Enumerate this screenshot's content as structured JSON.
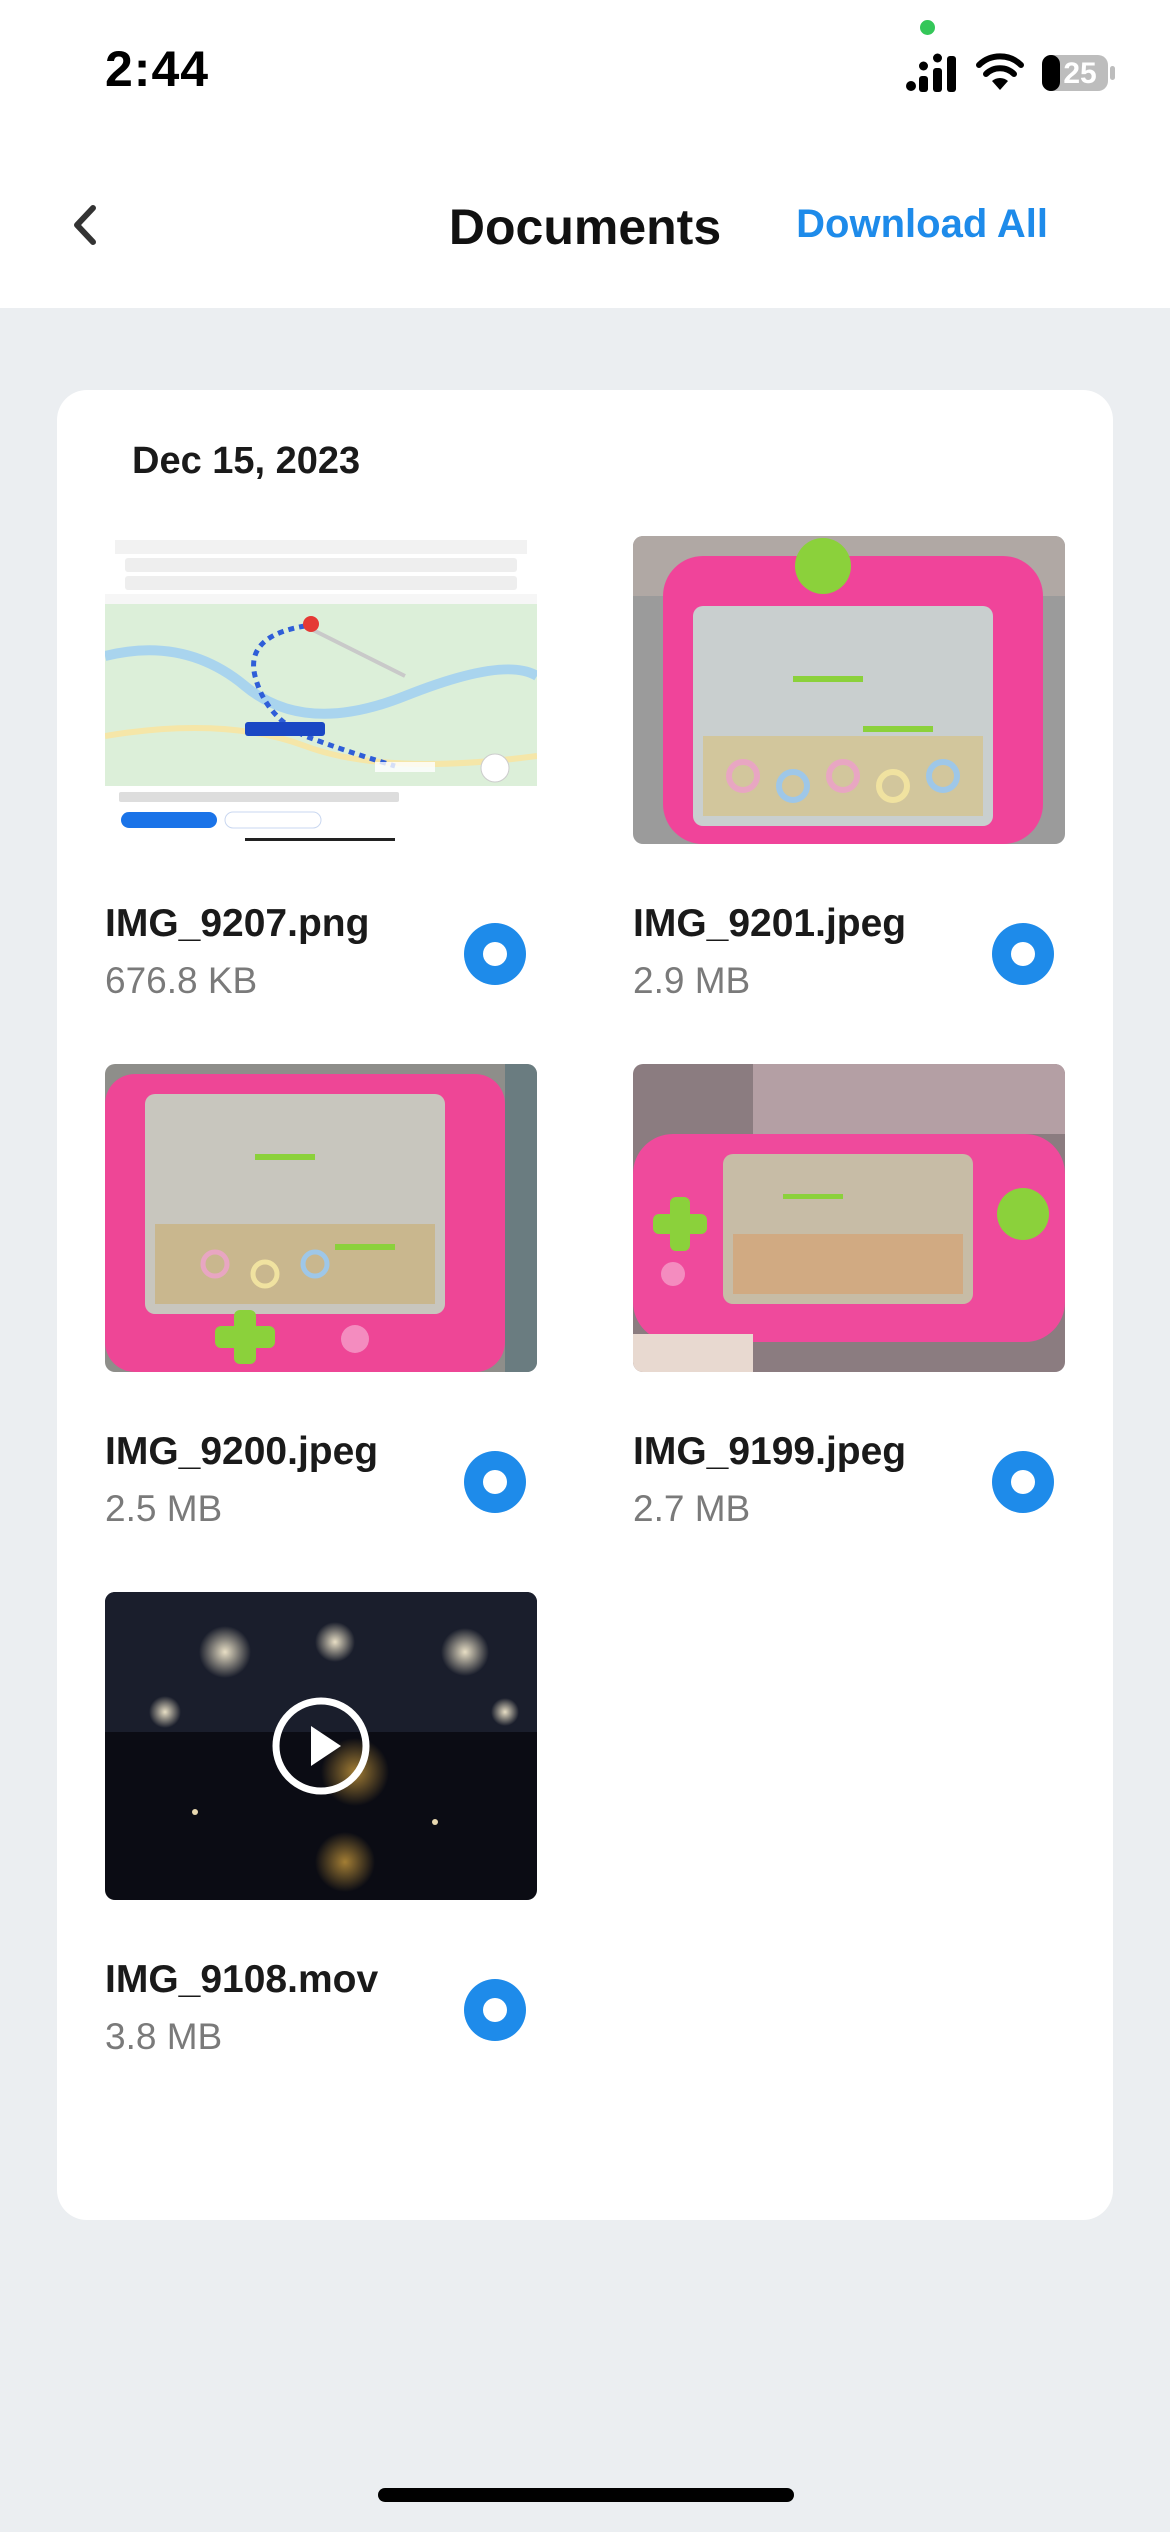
{
  "status_bar": {
    "time": "2:44",
    "battery_level": "25",
    "icons": [
      "signal-icon",
      "wifi-icon",
      "battery-icon"
    ]
  },
  "header": {
    "title": "Documents",
    "back_icon": "chevron-left-icon",
    "download_all_label": "Download All",
    "accent_color": "#1E8BEA"
  },
  "section": {
    "date": "Dec 15, 2023"
  },
  "files": [
    {
      "name": "IMG_9207.png",
      "size": "676.8 KB",
      "type": "image"
    },
    {
      "name": "IMG_9201.jpeg",
      "size": "2.9 MB",
      "type": "image"
    },
    {
      "name": "IMG_9200.jpeg",
      "size": "2.5 MB",
      "type": "image"
    },
    {
      "name": "IMG_9199.jpeg",
      "size": "2.7 MB",
      "type": "image"
    },
    {
      "name": "IMG_9108.mov",
      "size": "3.8 MB",
      "type": "video"
    }
  ]
}
